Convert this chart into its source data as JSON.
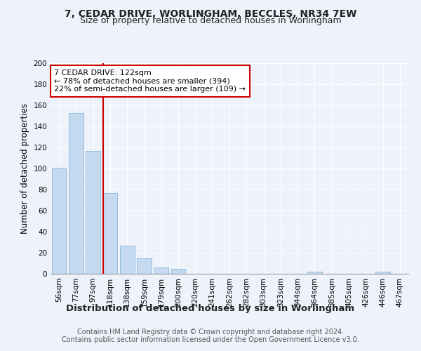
{
  "title": "7, CEDAR DRIVE, WORLINGHAM, BECCLES, NR34 7EW",
  "subtitle": "Size of property relative to detached houses in Worlingham",
  "xlabel": "Distribution of detached houses by size in Worlingham",
  "ylabel": "Number of detached properties",
  "footnote1": "Contains HM Land Registry data © Crown copyright and database right 2024.",
  "footnote2": "Contains public sector information licensed under the Open Government Licence v3.0.",
  "bar_labels": [
    "56sqm",
    "77sqm",
    "97sqm",
    "118sqm",
    "138sqm",
    "159sqm",
    "179sqm",
    "200sqm",
    "220sqm",
    "241sqm",
    "262sqm",
    "282sqm",
    "303sqm",
    "323sqm",
    "344sqm",
    "364sqm",
    "385sqm",
    "405sqm",
    "426sqm",
    "446sqm",
    "467sqm"
  ],
  "bar_values": [
    101,
    153,
    117,
    77,
    27,
    15,
    6,
    5,
    0,
    0,
    0,
    0,
    0,
    0,
    0,
    2,
    0,
    0,
    0,
    2,
    0
  ],
  "bar_color": "#c5d9f0",
  "bar_edge_color": "#7aafd4",
  "property_label": "7 CEDAR DRIVE: 122sqm",
  "annotation_line1": "← 78% of detached houses are smaller (394)",
  "annotation_line2": "22% of semi-detached houses are larger (109) →",
  "vline_color": "#cc0000",
  "box_color": "#cc0000",
  "ylim": [
    0,
    200
  ],
  "yticks": [
    0,
    20,
    40,
    60,
    80,
    100,
    120,
    140,
    160,
    180,
    200
  ],
  "background_color": "#eef2fa",
  "plot_bg_color": "#eef2fa",
  "title_fontsize": 10,
  "subtitle_fontsize": 9,
  "xlabel_fontsize": 9.5,
  "ylabel_fontsize": 8.5,
  "tick_fontsize": 7.5,
  "annot_fontsize": 8,
  "footnote_fontsize": 7
}
